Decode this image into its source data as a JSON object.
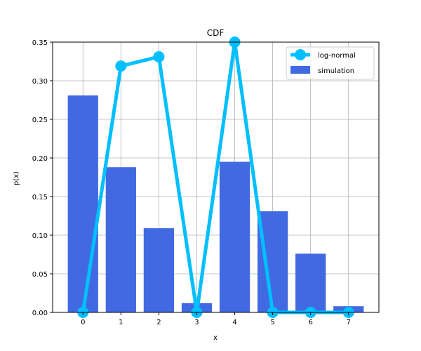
{
  "chart_data": {
    "type": "bar",
    "title": "CDF",
    "xlabel": "x",
    "ylabel": "p(x)",
    "categories": [
      0,
      1,
      2,
      3,
      4,
      5,
      6,
      7
    ],
    "x_ticks": [
      "0",
      "1",
      "2",
      "3",
      "4",
      "5",
      "6",
      "7"
    ],
    "y_ticks": [
      "0.00",
      "0.05",
      "0.10",
      "0.15",
      "0.20",
      "0.25",
      "0.30",
      "0.35"
    ],
    "ylim": [
      0,
      0.35
    ],
    "xlim": [
      -0.8,
      7.8
    ],
    "grid": true,
    "legend_position": "top-right",
    "series": [
      {
        "name": "log-normal",
        "kind": "line",
        "color": "#00BFFF",
        "marker": "circle",
        "values": [
          0.0,
          0.319,
          0.331,
          0.0,
          0.35,
          0.0,
          0.0,
          0.0
        ]
      },
      {
        "name": "simulation",
        "kind": "bar",
        "color": "#4169E1",
        "values": [
          0.281,
          0.188,
          0.109,
          0.012,
          0.195,
          0.131,
          0.076,
          0.008
        ]
      }
    ]
  }
}
